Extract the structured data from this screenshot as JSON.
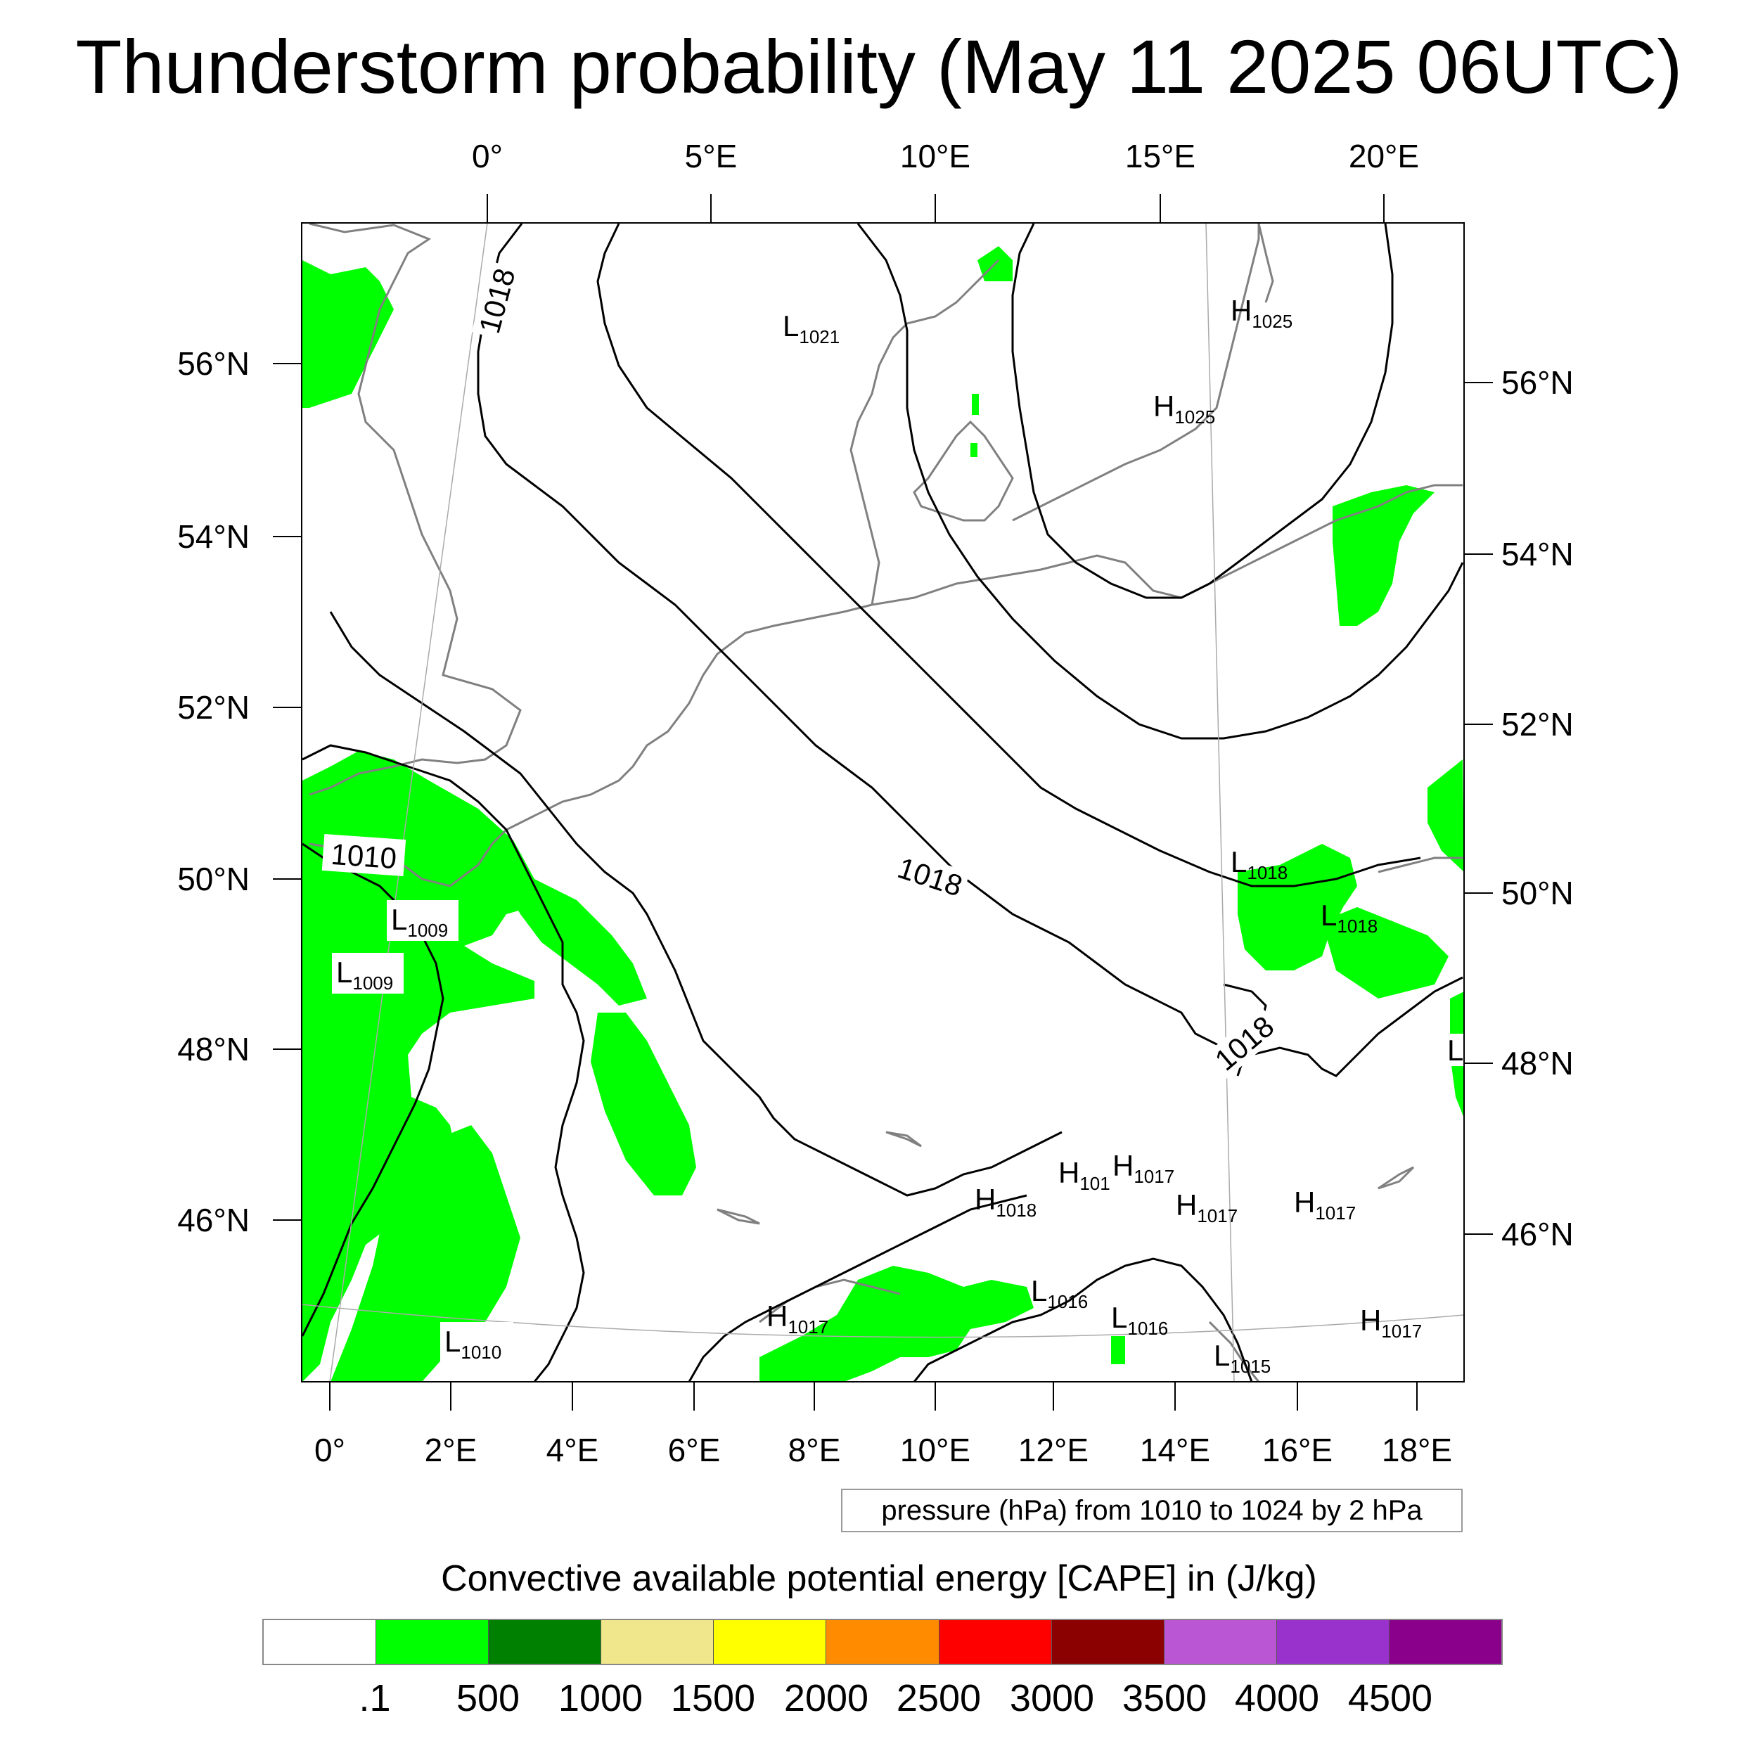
{
  "title": "Thunderstorm probability (May 11 2025 06UTC)",
  "top_axis_labels": [
    "0°",
    "5°E",
    "10°E",
    "15°E",
    "20°E"
  ],
  "bottom_axis_labels": [
    "0°",
    "2°E",
    "4°E",
    "6°E",
    "8°E",
    "10°E",
    "12°E",
    "14°E",
    "16°E",
    "18°E"
  ],
  "left_axis_labels": [
    "56°N",
    "54°N",
    "52°N",
    "50°N",
    "48°N",
    "46°N"
  ],
  "right_axis_labels": [
    "56°N",
    "54°N",
    "52°N",
    "50°N",
    "48°N",
    "46°N"
  ],
  "isobar_labels": [
    "1018",
    "1010",
    "1018",
    "1018"
  ],
  "pressure_centers": [
    {
      "letter": "L",
      "value": "1021"
    },
    {
      "letter": "H",
      "value": "1025"
    },
    {
      "letter": "H",
      "value": "1025"
    },
    {
      "letter": "L",
      "value": "1009"
    },
    {
      "letter": "L",
      "value": "1009"
    },
    {
      "letter": "L",
      "value": "1018"
    },
    {
      "letter": "L",
      "value": "1018"
    },
    {
      "letter": "L",
      "value": ""
    },
    {
      "letter": "H",
      "value": "1018"
    },
    {
      "letter": "H",
      "value": "101"
    },
    {
      "letter": "H",
      "value": "1017"
    },
    {
      "letter": "H",
      "value": "1017"
    },
    {
      "letter": "H",
      "value": "1017"
    },
    {
      "letter": "L",
      "value": "1016"
    },
    {
      "letter": "L",
      "value": "1016"
    },
    {
      "letter": "H",
      "value": "1017"
    },
    {
      "letter": "L",
      "value": "1010"
    },
    {
      "letter": "H",
      "value": "1017"
    },
    {
      "letter": "L",
      "value": "1015"
    }
  ],
  "contour_info": "pressure (hPa) from 1010 to 1024 by 2 hPa",
  "colorbar": {
    "title": "Convective available potential energy [CAPE] in (J/kg)",
    "labels": [
      ".1",
      "500",
      "1000",
      "1500",
      "2000",
      "2500",
      "3000",
      "3500",
      "4000",
      "4500"
    ],
    "colors": [
      "#ffffff",
      "#00ff00",
      "#008000",
      "#f0e68c",
      "#ffff00",
      "#ff8c00",
      "#ff0000",
      "#8b0000",
      "#ba55d3",
      "#9932cc",
      "#8b008b"
    ]
  },
  "colors": {
    "cape_fill": "#00ff00",
    "coast": "#808080",
    "isobar": "#000000"
  }
}
